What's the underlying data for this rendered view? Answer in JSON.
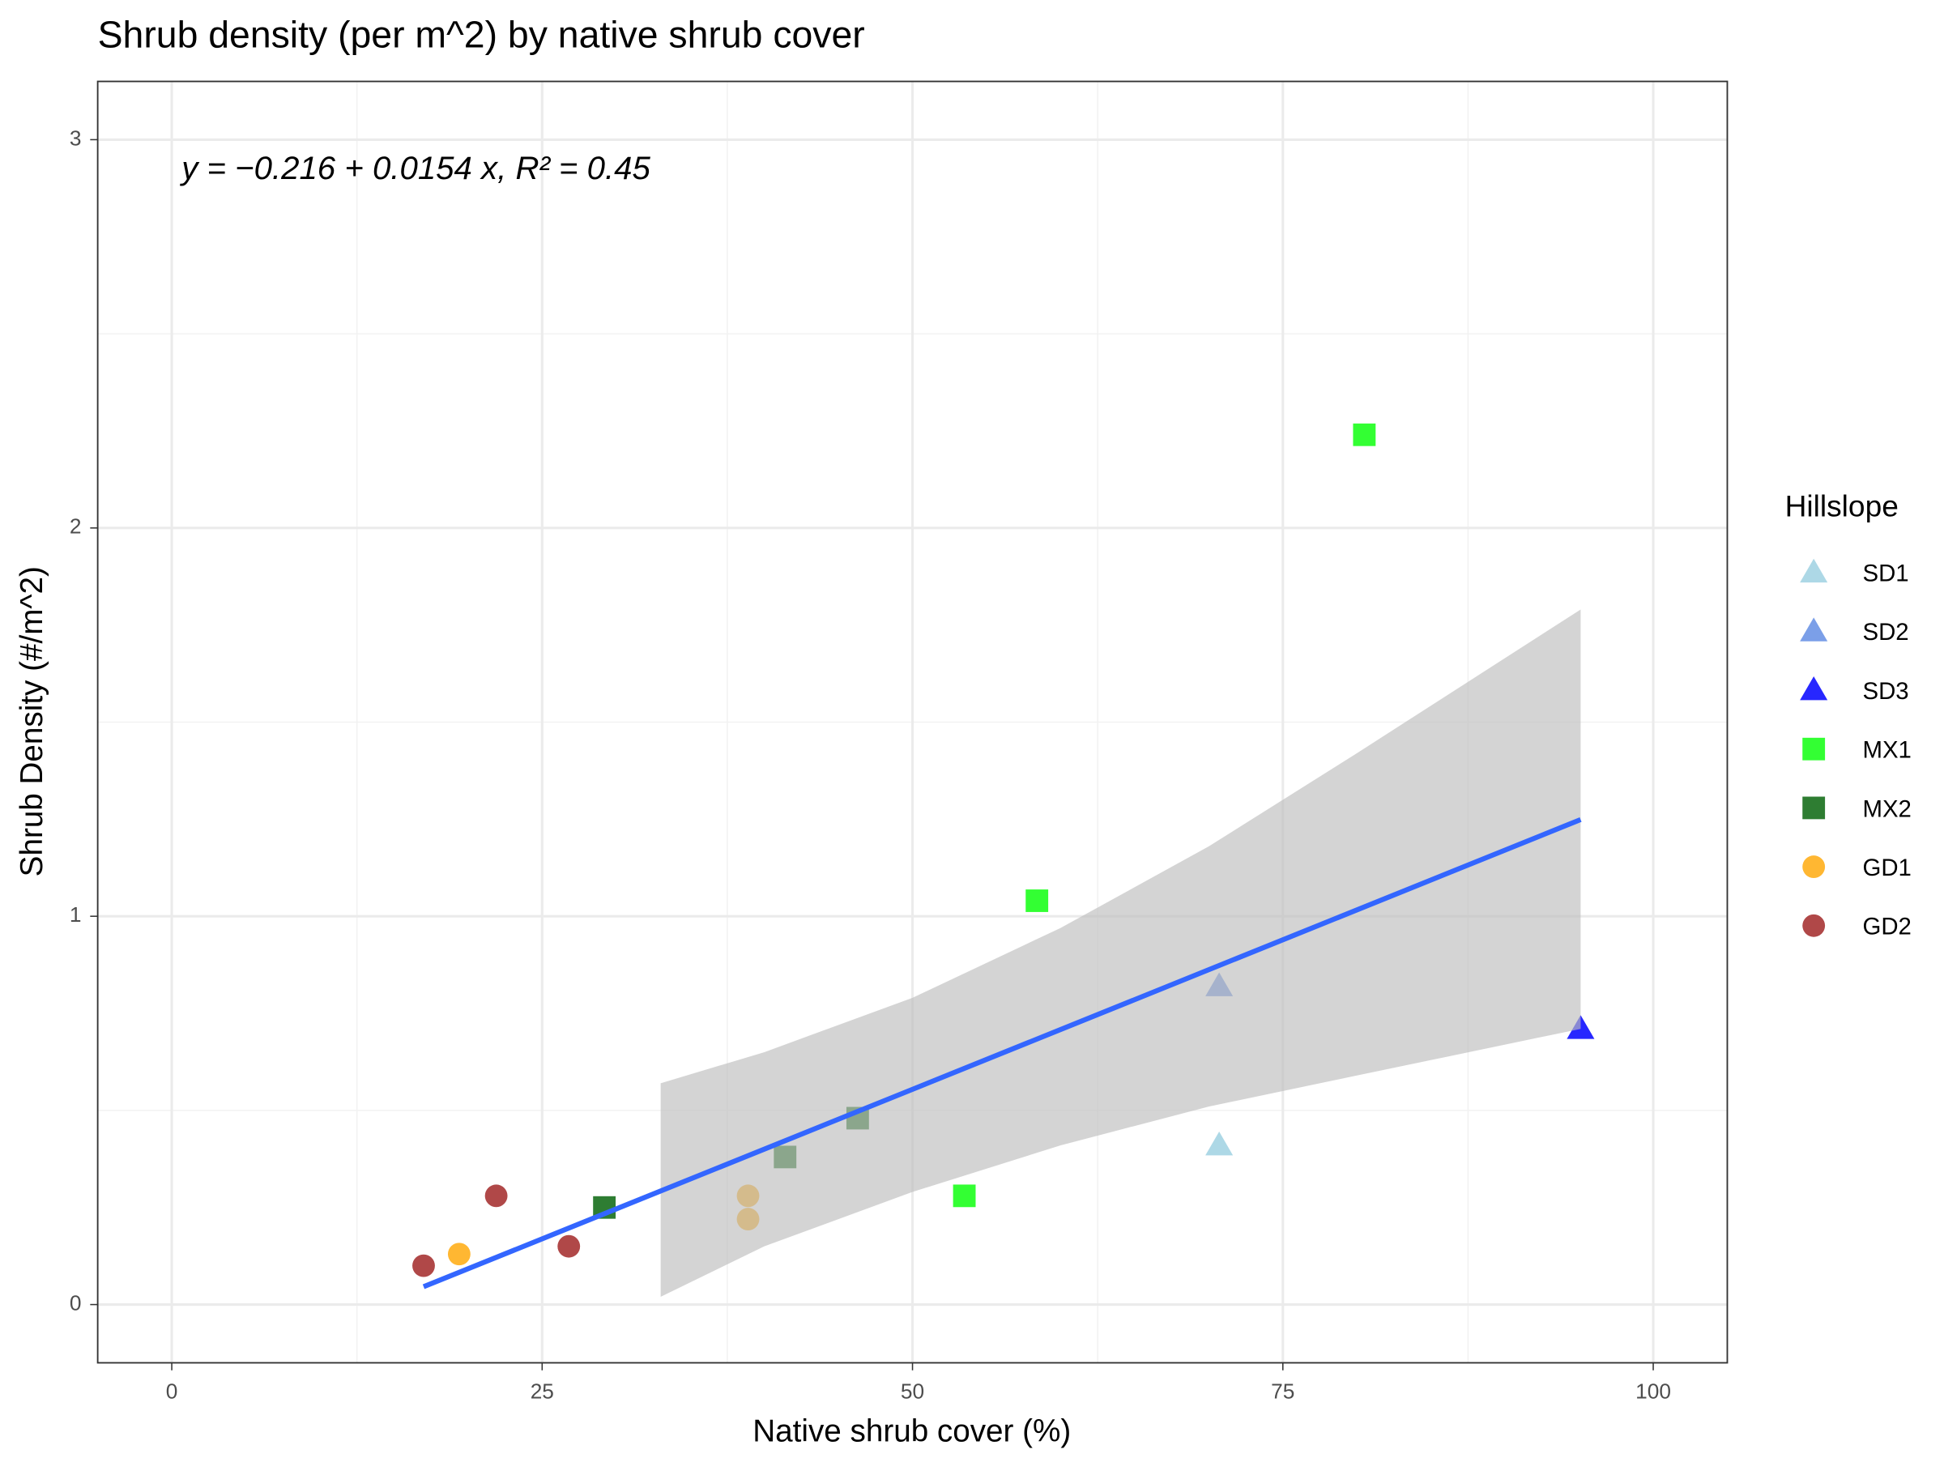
{
  "chart_data": {
    "type": "scatter",
    "title": "Shrub density (per m^2) by native shrub cover",
    "x_label": "Native shrub cover (%)",
    "y_label": "Shrub Density (#/m^2)",
    "annotation": "y = −0.216 + 0.0154 x,  R² = 0.45",
    "legend_title": "Hillslope",
    "legend_position": "right",
    "grid": true,
    "xlim": [
      -5,
      105
    ],
    "xticks": [
      0,
      25,
      50,
      75,
      100
    ],
    "xminor": [
      12.5,
      37.5,
      62.5,
      87.5
    ],
    "ylim": [
      -0.15,
      3.15
    ],
    "yticks": [
      0,
      1,
      2,
      3
    ],
    "yminor": [
      0.5,
      1.5,
      2.5
    ],
    "series": [
      {
        "name": "SD1",
        "color": "#add8e6",
        "shape": "triangle",
        "x": [
          70.7
        ],
        "y": [
          0.41
        ]
      },
      {
        "name": "SD2",
        "color": "#7b9fe8",
        "shape": "triangle",
        "x": [
          70.7
        ],
        "y": [
          0.82
        ]
      },
      {
        "name": "SD3",
        "color": "#2727ff",
        "shape": "triangle",
        "x": [
          95.1
        ],
        "y": [
          0.71
        ]
      },
      {
        "name": "MX1",
        "color": "#33ff33",
        "shape": "square",
        "x": [
          58.4,
          80.5,
          53.5
        ],
        "y": [
          1.04,
          2.24,
          0.28
        ]
      },
      {
        "name": "MX2",
        "color": "#2e7d32",
        "shape": "square",
        "x": [
          29.2,
          41.4,
          46.3
        ],
        "y": [
          0.25,
          0.38,
          0.48
        ]
      },
      {
        "name": "GD1",
        "color": "#ffb732",
        "shape": "circle",
        "x": [
          19.4,
          38.9,
          38.9
        ],
        "y": [
          0.13,
          0.28,
          0.22
        ]
      },
      {
        "name": "GD2",
        "color": "#b04848",
        "shape": "circle",
        "x": [
          17.0,
          21.9,
          26.8
        ],
        "y": [
          0.1,
          0.28,
          0.15
        ]
      }
    ],
    "fit": {
      "color": "#3366ff",
      "x": [
        17.0,
        95.1
      ],
      "y": [
        0.046,
        1.249
      ]
    },
    "ribbon": {
      "color": "#bdbdbd",
      "x": [
        33,
        40,
        50,
        60,
        70,
        80,
        95.1
      ],
      "upper": [
        0.57,
        0.65,
        0.79,
        0.97,
        1.18,
        1.42,
        1.79
      ],
      "lower": [
        0.02,
        0.15,
        0.29,
        0.41,
        0.51,
        0.59,
        0.71
      ]
    }
  }
}
